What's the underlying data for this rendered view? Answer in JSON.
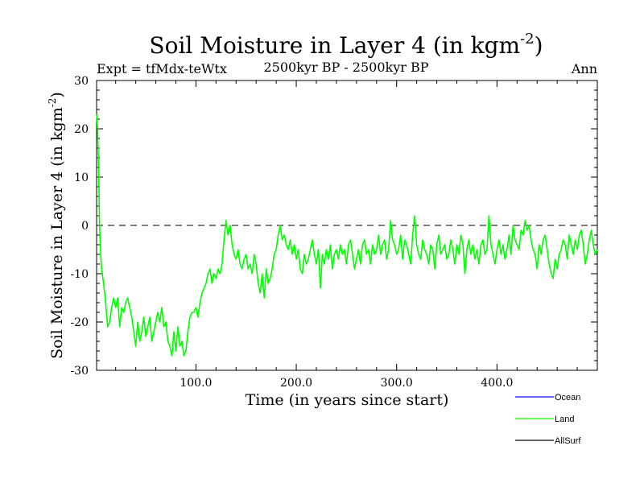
{
  "header": {
    "title_main": "Soil Moisture in Layer 4 (in kgm",
    "title_sup": "-2",
    "title_close": ")",
    "subtitle": "2500kyr BP - 2500kyr BP",
    "expt": "Expt = tfMdx-teWtx",
    "season": "Ann"
  },
  "colors": {
    "ocean": "#0000ff",
    "land": "#00ff00",
    "allsurf": "#000000",
    "zero_line": "#000000"
  },
  "chart_data": {
    "type": "line",
    "title": "Soil Moisture in Layer 4 (in kgm-2)",
    "xlabel": "Time (in years since start)",
    "ylabel_main": "Soil Moisture in Layer 4 (in kgm",
    "ylabel_sup": "-2",
    "ylabel_close": ")",
    "xlim": [
      1,
      500
    ],
    "ylim": [
      -30,
      30
    ],
    "x_ticks": [
      100,
      200,
      300,
      400
    ],
    "x_tick_labels": [
      "100.0",
      "200.0",
      "300.0",
      "400.0"
    ],
    "y_ticks": [
      -30,
      -20,
      -10,
      0,
      10,
      20,
      30
    ],
    "y_tick_labels": [
      "-30",
      "-20",
      "-10",
      "0",
      "10",
      "20",
      "30"
    ],
    "reference_line": 0,
    "legend": [
      {
        "name": "Ocean",
        "color": "#0000ff"
      },
      {
        "name": "Land",
        "color": "#00ff00"
      },
      {
        "name": "AllSurf",
        "color": "#000000"
      }
    ],
    "series": [
      {
        "name": "Land",
        "x": [
          1,
          2,
          3,
          4,
          5,
          6,
          8,
          10,
          12,
          14,
          16,
          18,
          20,
          22,
          24,
          26,
          28,
          30,
          32,
          34,
          36,
          38,
          40,
          42,
          44,
          46,
          48,
          50,
          52,
          54,
          56,
          58,
          60,
          62,
          64,
          66,
          68,
          70,
          72,
          74,
          76,
          78,
          80,
          82,
          84,
          86,
          88,
          90,
          92,
          94,
          96,
          98,
          100,
          102,
          104,
          106,
          108,
          110,
          112,
          114,
          116,
          118,
          120,
          122,
          124,
          126,
          128,
          130,
          132,
          134,
          136,
          138,
          140,
          142,
          144,
          146,
          148,
          150,
          152,
          154,
          156,
          158,
          160,
          162,
          164,
          166,
          168,
          170,
          172,
          174,
          176,
          178,
          180,
          182,
          184,
          186,
          188,
          190,
          192,
          194,
          196,
          198,
          200,
          202,
          204,
          206,
          208,
          210,
          212,
          214,
          216,
          218,
          220,
          222,
          224,
          226,
          228,
          230,
          232,
          234,
          236,
          238,
          240,
          242,
          244,
          246,
          248,
          250,
          252,
          254,
          256,
          258,
          260,
          262,
          264,
          266,
          268,
          270,
          272,
          274,
          276,
          278,
          280,
          282,
          284,
          286,
          288,
          290,
          292,
          294,
          296,
          298,
          300,
          302,
          304,
          306,
          308,
          310,
          312,
          314,
          316,
          318,
          320,
          322,
          324,
          326,
          328,
          330,
          332,
          334,
          336,
          338,
          340,
          342,
          344,
          346,
          348,
          350,
          352,
          354,
          356,
          358,
          360,
          362,
          364,
          366,
          368,
          370,
          372,
          374,
          376,
          378,
          380,
          382,
          384,
          386,
          388,
          390,
          392,
          394,
          396,
          398,
          400,
          402,
          404,
          406,
          408,
          410,
          412,
          414,
          416,
          418,
          420,
          422,
          424,
          426,
          428,
          430,
          432,
          434,
          436,
          438,
          440,
          442,
          444,
          446,
          448,
          450,
          452,
          454,
          456,
          458,
          460,
          462,
          464,
          466,
          468,
          470,
          472,
          474,
          476,
          478,
          480,
          482,
          484,
          486,
          488,
          490,
          492,
          494,
          496,
          498,
          500
        ],
        "values": [
          23,
          20,
          12,
          0,
          -6,
          -9,
          -12,
          -16,
          -21,
          -20,
          -17,
          -15,
          -17,
          -15,
          -21,
          -17,
          -18,
          -16,
          -15,
          -17,
          -19,
          -22,
          -25,
          -20,
          -24,
          -22,
          -19,
          -23,
          -21,
          -19,
          -24,
          -22,
          -20,
          -18,
          -20,
          -17,
          -21,
          -20,
          -24,
          -25,
          -27,
          -22,
          -26,
          -21,
          -25,
          -24,
          -27,
          -26,
          -22,
          -19,
          -18,
          -18,
          -17,
          -19,
          -16,
          -14,
          -13,
          -12,
          -10,
          -9,
          -12,
          -10,
          -11,
          -9,
          -10,
          -8,
          -3,
          1,
          -2,
          0,
          -4,
          -6,
          -7,
          -5,
          -8,
          -9,
          -7,
          -6,
          -9,
          -8,
          -10,
          -6,
          -8,
          -12,
          -14,
          -10,
          -15,
          -9,
          -12,
          -11,
          -9,
          -6,
          -5,
          -2,
          0,
          -3,
          -2,
          -4,
          -5,
          -3,
          -6,
          -4,
          -7,
          -5,
          -9,
          -10,
          -6,
          -8,
          -7,
          -5,
          -3,
          -6,
          -8,
          -5,
          -13,
          -6,
          -8,
          -5,
          -7,
          -4,
          -9,
          -6,
          -5,
          -7,
          -4,
          -6,
          -5,
          -8,
          -4,
          -3,
          -6,
          -9,
          -7,
          -5,
          -8,
          -4,
          -3,
          -6,
          -5,
          -8,
          -4,
          -6,
          -5,
          -2,
          -6,
          -4,
          -3,
          -7,
          -5,
          1,
          -3,
          -4,
          -6,
          -5,
          -2,
          -7,
          -3,
          -4,
          -6,
          -8,
          -2,
          2,
          -4,
          -6,
          -7,
          -3,
          -5,
          -6,
          -8,
          -4,
          -5,
          -9,
          -4,
          -2,
          -6,
          -5,
          -4,
          -7,
          -6,
          -3,
          -5,
          -8,
          -4,
          -6,
          -2,
          -4,
          -10,
          -5,
          -3,
          -6,
          -4,
          -7,
          -5,
          -8,
          -4,
          -3,
          -6,
          -5,
          2,
          -4,
          -6,
          -8,
          -5,
          -3,
          -6,
          -4,
          -7,
          -5,
          -2,
          -6,
          0,
          -3,
          -4,
          -5,
          -1,
          -2,
          1,
          -1,
          0,
          -3,
          -5,
          -6,
          -9,
          -4,
          -6,
          -3,
          -2,
          -5,
          -8,
          -10,
          -11,
          -7,
          -9,
          -6,
          -5,
          -3,
          -4,
          -7,
          -2,
          -4,
          -6,
          -3,
          -5,
          -2,
          -1,
          -4,
          -8,
          -6,
          -3,
          -1,
          -4,
          -6,
          -5
        ]
      }
    ]
  }
}
